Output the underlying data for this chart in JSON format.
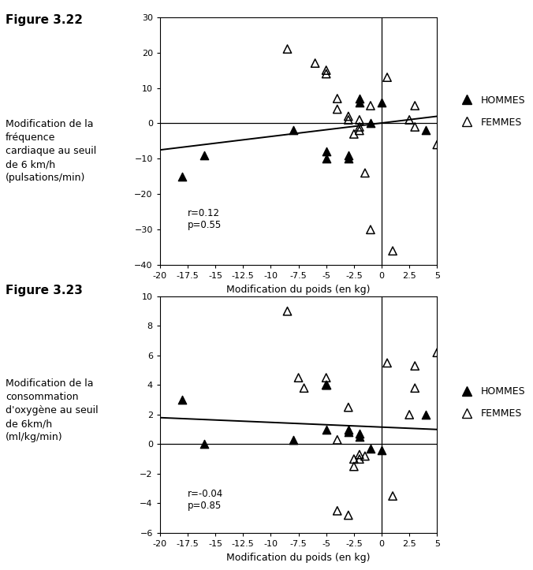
{
  "fig1": {
    "title": "Figure 3.22",
    "ylabel": "Modification de la\nfréquence\ncardiaque au seuil\nde 6 km/h\n(pulsations/min)",
    "xlabel": "Modification du poids (en kg)",
    "xlim": [
      -20,
      5
    ],
    "ylim": [
      -40,
      30
    ],
    "xticks": [
      -20,
      -17.5,
      -15,
      -12.5,
      -10,
      -7.5,
      -5,
      -2.5,
      0,
      2.5,
      5
    ],
    "yticks": [
      -40,
      -30,
      -20,
      -10,
      0,
      10,
      20,
      30
    ],
    "annotation": "r=0.12\np=0.55",
    "ann_x": -17.5,
    "ann_y": -24,
    "trendline_x": [
      -20,
      5
    ],
    "trendline_y": [
      -7.5,
      2.0
    ],
    "hommes_x": [
      -18,
      -16,
      -8,
      -5,
      -5,
      -3,
      -3,
      -2,
      -2,
      -1,
      0,
      4
    ],
    "hommes_y": [
      -15,
      -9,
      -2,
      -8,
      -10,
      -9,
      -10,
      7,
      6,
      0,
      6,
      -2
    ],
    "femmes_x": [
      -8.5,
      -6,
      -5,
      -5,
      -4,
      -4,
      -3,
      -3,
      -2.5,
      -2,
      -2,
      -2,
      -1.5,
      -1,
      -1,
      0.5,
      1,
      2.5,
      3,
      3,
      5
    ],
    "femmes_y": [
      21,
      17,
      15,
      14,
      7,
      4,
      2,
      1,
      -3,
      1,
      -1,
      -2,
      -14,
      5,
      -30,
      13,
      -36,
      1,
      5,
      -1,
      -6
    ]
  },
  "fig2": {
    "title": "Figure 3.23",
    "ylabel": "Modification de la\nconsommation\nd'oxygène au seuil\nde 6km/h\n(ml/kg/min)",
    "xlabel": "Modification du poids (en kg)",
    "xlim": [
      -20,
      5
    ],
    "ylim": [
      -6,
      10
    ],
    "xticks": [
      -20,
      -17.5,
      -15,
      -12.5,
      -10,
      -7.5,
      -5,
      -2.5,
      0,
      2.5,
      5
    ],
    "yticks": [
      -6,
      -4,
      -2,
      0,
      2,
      4,
      6,
      8,
      10
    ],
    "annotation": "r=-0.04\np=0.85",
    "ann_x": -17.5,
    "ann_y": -3.0,
    "trendline_x": [
      -20,
      5
    ],
    "trendline_y": [
      1.8,
      1.0
    ],
    "hommes_x": [
      -18,
      -16,
      -8,
      -5,
      -5,
      -3,
      -3,
      -2,
      -2,
      -1,
      0,
      4
    ],
    "hommes_y": [
      3,
      0,
      0.3,
      1,
      4,
      1,
      0.8,
      0.5,
      0.7,
      -0.3,
      -0.4,
      2
    ],
    "femmes_x": [
      -8.5,
      -7.5,
      -7,
      -5,
      -5,
      -4,
      -4,
      -3,
      -3,
      -2.5,
      -2.5,
      -2,
      -2,
      -1.5,
      0.5,
      1,
      2.5,
      3,
      3,
      5
    ],
    "femmes_y": [
      9,
      4.5,
      3.8,
      4,
      4.5,
      0.3,
      -4.5,
      -4.8,
      2.5,
      -1.5,
      -1,
      -0.7,
      -1,
      -0.8,
      5.5,
      -3.5,
      2,
      5.3,
      3.8,
      6.2
    ]
  },
  "legend_hommes": "HOMMES",
  "legend_femmes": "FEMMES",
  "bg_color": "#ffffff"
}
